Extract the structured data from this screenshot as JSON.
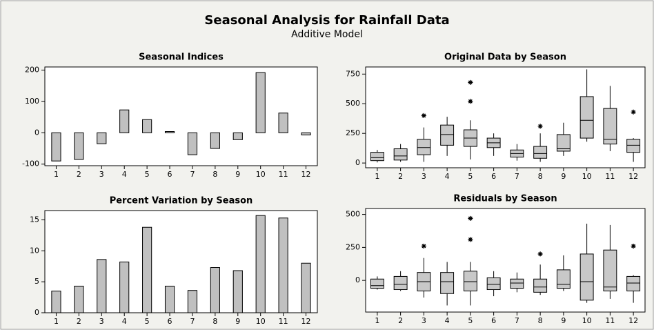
{
  "title": "Seasonal Analysis for Rainfall Data",
  "subtitle": "Additive Model",
  "chart_data": [
    {
      "type": "bar",
      "title": "Seasonal Indices",
      "categories": [
        "1",
        "2",
        "3",
        "4",
        "5",
        "6",
        "7",
        "8",
        "9",
        "10",
        "11",
        "12"
      ],
      "values": [
        -90,
        -85,
        -35,
        73,
        42,
        4,
        -70,
        -50,
        -22,
        192,
        63,
        -7
      ],
      "color": "#c0c0c0",
      "ylim": [
        -105,
        210
      ],
      "yticks": [
        -100,
        0,
        100,
        200
      ]
    },
    {
      "type": "box",
      "title": "Original Data by Season",
      "categories": [
        "1",
        "2",
        "3",
        "4",
        "5",
        "6",
        "7",
        "8",
        "9",
        "10",
        "11",
        "12"
      ],
      "boxes": [
        {
          "whislo": 5,
          "q1": 20,
          "med": 45,
          "q3": 90,
          "whishi": 110,
          "fliers": []
        },
        {
          "whislo": 10,
          "q1": 25,
          "med": 60,
          "q3": 120,
          "whishi": 160,
          "fliers": []
        },
        {
          "whislo": 10,
          "q1": 70,
          "med": 130,
          "q3": 200,
          "whishi": 300,
          "fliers": [
            400
          ]
        },
        {
          "whislo": 60,
          "q1": 150,
          "med": 240,
          "q3": 320,
          "whishi": 390,
          "fliers": []
        },
        {
          "whislo": 30,
          "q1": 140,
          "med": 210,
          "q3": 280,
          "whishi": 360,
          "fliers": [
            520,
            680
          ]
        },
        {
          "whislo": 60,
          "q1": 130,
          "med": 170,
          "q3": 210,
          "whishi": 250,
          "fliers": []
        },
        {
          "whislo": 20,
          "q1": 50,
          "med": 80,
          "q3": 110,
          "whishi": 160,
          "fliers": []
        },
        {
          "whislo": 10,
          "q1": 40,
          "med": 80,
          "q3": 140,
          "whishi": 250,
          "fliers": [
            310
          ]
        },
        {
          "whislo": 60,
          "q1": 100,
          "med": 120,
          "q3": 240,
          "whishi": 340,
          "fliers": []
        },
        {
          "whislo": 180,
          "q1": 210,
          "med": 360,
          "q3": 560,
          "whishi": 790,
          "fliers": []
        },
        {
          "whislo": 100,
          "q1": 160,
          "med": 200,
          "q3": 460,
          "whishi": 650,
          "fliers": []
        },
        {
          "whislo": 10,
          "q1": 90,
          "med": 150,
          "q3": 200,
          "whishi": 210,
          "fliers": [
            430
          ]
        }
      ],
      "color": "#c8c8c8",
      "ylim": [
        -40,
        810
      ],
      "yticks": [
        0,
        250,
        500,
        750
      ]
    },
    {
      "type": "bar",
      "title": "Percent Variation by Season",
      "categories": [
        "1",
        "2",
        "3",
        "4",
        "5",
        "6",
        "7",
        "8",
        "9",
        "10",
        "11",
        "12"
      ],
      "values": [
        3.5,
        4.3,
        8.6,
        8.2,
        13.8,
        4.3,
        3.6,
        7.3,
        6.8,
        15.7,
        15.3,
        8.0
      ],
      "color": "#c0c0c0",
      "ylim": [
        0,
        16.5
      ],
      "yticks": [
        0,
        5,
        10,
        15
      ]
    },
    {
      "type": "box",
      "title": "Residuals by Season",
      "categories": [
        "1",
        "2",
        "3",
        "4",
        "5",
        "6",
        "7",
        "8",
        "9",
        "10",
        "11",
        "12"
      ],
      "boxes": [
        {
          "whislo": -70,
          "q1": -60,
          "med": -40,
          "q3": 10,
          "whishi": 30,
          "fliers": []
        },
        {
          "whislo": -80,
          "q1": -70,
          "med": -30,
          "q3": 30,
          "whishi": 70,
          "fliers": []
        },
        {
          "whislo": -130,
          "q1": -80,
          "med": -10,
          "q3": 60,
          "whishi": 170,
          "fliers": [
            260
          ]
        },
        {
          "whislo": -190,
          "q1": -100,
          "med": -10,
          "q3": 60,
          "whishi": 140,
          "fliers": []
        },
        {
          "whislo": -190,
          "q1": -80,
          "med": -10,
          "q3": 70,
          "whishi": 140,
          "fliers": [
            310,
            470
          ]
        },
        {
          "whislo": -120,
          "q1": -70,
          "med": -30,
          "q3": 20,
          "whishi": 70,
          "fliers": []
        },
        {
          "whislo": -90,
          "q1": -60,
          "med": -20,
          "q3": 10,
          "whishi": 60,
          "fliers": []
        },
        {
          "whislo": -110,
          "q1": -90,
          "med": -50,
          "q3": 10,
          "whishi": 120,
          "fliers": [
            200
          ]
        },
        {
          "whislo": -80,
          "q1": -60,
          "med": -30,
          "q3": 80,
          "whishi": 190,
          "fliers": []
        },
        {
          "whislo": -170,
          "q1": -150,
          "med": -10,
          "q3": 200,
          "whishi": 430,
          "fliers": []
        },
        {
          "whislo": -140,
          "q1": -80,
          "med": -50,
          "q3": 230,
          "whishi": 420,
          "fliers": []
        },
        {
          "whislo": -170,
          "q1": -80,
          "med": -20,
          "q3": 30,
          "whishi": 40,
          "fliers": [
            260
          ]
        }
      ],
      "color": "#c8c8c8",
      "ylim": [
        -240,
        545
      ],
      "yticks": [
        0,
        250,
        500
      ]
    }
  ]
}
